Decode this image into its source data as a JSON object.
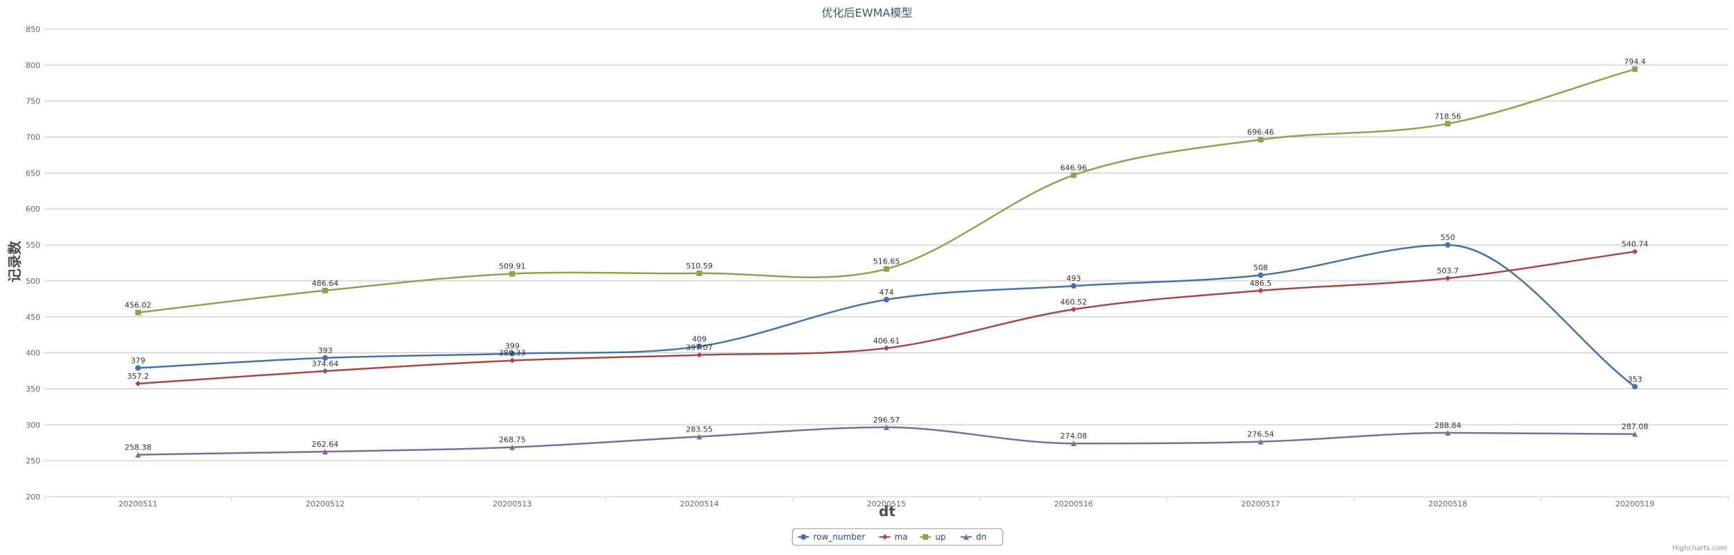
{
  "chart_data": {
    "type": "line",
    "title": "优化后EWMA模型",
    "xlabel": "dt",
    "ylabel": "记录数",
    "ylim": [
      200,
      850
    ],
    "y_ticks": [
      200,
      250,
      300,
      350,
      400,
      450,
      500,
      550,
      600,
      650,
      700,
      750,
      800,
      850
    ],
    "categories": [
      "20200511",
      "20200512",
      "20200513",
      "20200514",
      "20200515",
      "20200516",
      "20200517",
      "20200518",
      "20200519"
    ],
    "grid": true,
    "legend_position": "bottom-center",
    "series": [
      {
        "name": "row_number",
        "color": "#4572A7",
        "marker": "circle",
        "values": [
          379,
          393,
          399,
          409,
          474,
          493,
          508,
          550,
          353
        ],
        "labels": [
          "379",
          "393",
          "399",
          "409",
          "474",
          "493",
          "508",
          "550",
          "353"
        ]
      },
      {
        "name": "ma",
        "color": "#AA4643",
        "marker": "diamond",
        "values": [
          357.2,
          374.64,
          389.33,
          397.07,
          406.61,
          460.52,
          486.5,
          503.7,
          540.74
        ],
        "labels": [
          "357.2",
          "374.64",
          "389.33",
          "397.07",
          "406.61",
          "460.52",
          "486.5",
          "503.7",
          "540.74"
        ]
      },
      {
        "name": "up",
        "color": "#89A54E",
        "marker": "square",
        "values": [
          456.02,
          486.64,
          509.91,
          510.59,
          516.65,
          646.96,
          696.46,
          718.56,
          794.4
        ],
        "labels": [
          "456.02",
          "486.64",
          "509.91",
          "510.59",
          "516.65",
          "646.96",
          "696.46",
          "718.56",
          "794.4"
        ]
      },
      {
        "name": "dn",
        "color": "#80699B",
        "marker": "triangle",
        "values": [
          258.38,
          262.64,
          268.75,
          283.55,
          296.57,
          274.08,
          276.54,
          288.84,
          287.08
        ],
        "labels": [
          "258.38",
          "262.64",
          "268.75",
          "283.55",
          "296.57",
          "274.08",
          "276.54",
          "288.84",
          "287.08"
        ]
      }
    ]
  },
  "credits": "Highcharts.com"
}
